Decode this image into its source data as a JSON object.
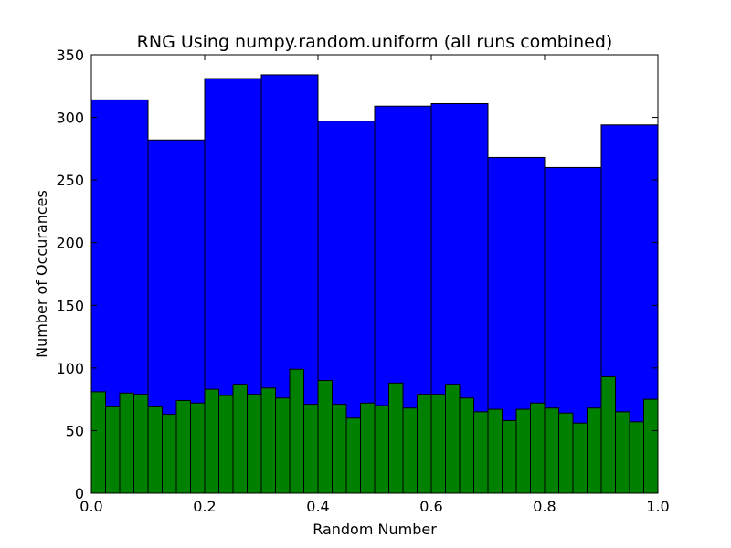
{
  "chart_data": {
    "type": "bar",
    "title": "RNG Using numpy.random.uniform (all runs combined)",
    "xlabel": "Random Number",
    "ylabel": "Number of Occurances",
    "xlim": [
      0.0,
      1.0
    ],
    "ylim": [
      0,
      350
    ],
    "xticks": [
      "0.0",
      "0.2",
      "0.4",
      "0.6",
      "0.8",
      "1.0"
    ],
    "yticks": [
      "0",
      "50",
      "100",
      "150",
      "200",
      "250",
      "300",
      "350"
    ],
    "grid": false,
    "series": [
      {
        "color": "#0000ff",
        "bin_edges": [
          0.0,
          0.1,
          0.2,
          0.3,
          0.4,
          0.5,
          0.6,
          0.7,
          0.8,
          0.9,
          1.0
        ],
        "counts": [
          314,
          282,
          331,
          334,
          297,
          309,
          311,
          268,
          260,
          294
        ]
      },
      {
        "color": "#008000",
        "bin_edges": [
          0.0,
          0.025,
          0.05,
          0.075,
          0.1,
          0.125,
          0.15,
          0.175,
          0.2,
          0.225,
          0.25,
          0.275,
          0.3,
          0.325,
          0.35,
          0.375,
          0.4,
          0.425,
          0.45,
          0.475,
          0.5,
          0.525,
          0.55,
          0.575,
          0.6,
          0.625,
          0.65,
          0.675,
          0.7,
          0.725,
          0.75,
          0.775,
          0.8,
          0.825,
          0.85,
          0.875,
          0.9,
          0.925,
          0.95,
          0.975,
          1.0
        ],
        "counts": [
          81,
          69,
          80,
          79,
          69,
          63,
          74,
          72,
          83,
          78,
          87,
          79,
          84,
          76,
          99,
          71,
          90,
          71,
          60,
          72,
          70,
          88,
          68,
          79,
          79,
          87,
          76,
          65,
          67,
          58,
          67,
          72,
          68,
          64,
          56,
          68,
          93,
          65,
          57,
          75
        ]
      }
    ]
  }
}
